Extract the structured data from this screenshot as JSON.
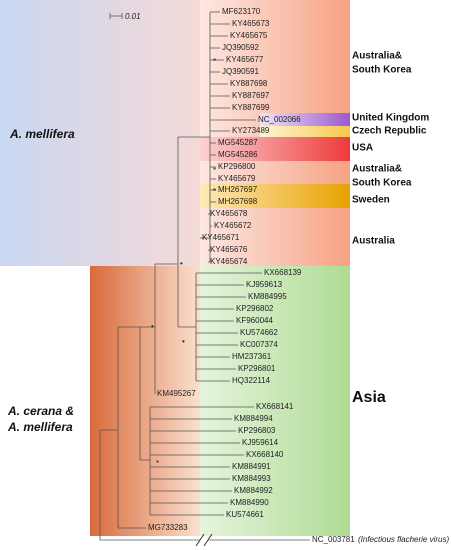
{
  "scale_bar": {
    "label": "0.01"
  },
  "clades": [
    {
      "lines": [
        "A. mellifera"
      ]
    },
    {
      "lines": [
        "A. cerana &",
        "A. mellifera"
      ]
    }
  ],
  "regions": [
    {
      "lines": [
        "Australia&",
        "South Korea"
      ]
    },
    {
      "lines": [
        "United Kingdom"
      ]
    },
    {
      "lines": [
        "Czech Republic"
      ]
    },
    {
      "lines": [
        "USA"
      ]
    },
    {
      "lines": [
        "Australia&",
        "South Korea"
      ]
    },
    {
      "lines": [
        "Sweden"
      ]
    },
    {
      "lines": [
        "Australia"
      ]
    },
    {
      "lines": [
        "Asia"
      ]
    }
  ],
  "leaves": [
    "MF623170",
    "KY465673",
    "KY465675",
    "JQ390592",
    "KY465677",
    "JQ390591",
    "KY887698",
    "KY887697",
    "KY887699",
    "NC_002066",
    "KY273489",
    "MG545287",
    "MG545286",
    "KP296800",
    "KY465679",
    "MH267697",
    "MH267698",
    "KY465678",
    "KY465672",
    "KY465671",
    "KY465676",
    "KY465674",
    "KX668139",
    "KJ959613",
    "KM884995",
    "KP296802",
    "KF960044",
    "KU574662",
    "KC007374",
    "HM237361",
    "KP296801",
    "HQ322114",
    "KM495267",
    "KX668141",
    "KM884994",
    "KP296803",
    "KJ959614",
    "KX668140",
    "KM884991",
    "KM884993",
    "KM884992",
    "KM884990",
    "KU574661",
    "MG733283"
  ],
  "outgroup": {
    "id": "NC_003781",
    "note": "(Infectious flacherie virus)"
  },
  "support": {
    "asterisks": [
      "*",
      "*",
      "*",
      "*"
    ],
    "dots": [
      "•",
      "•",
      "•"
    ]
  }
}
